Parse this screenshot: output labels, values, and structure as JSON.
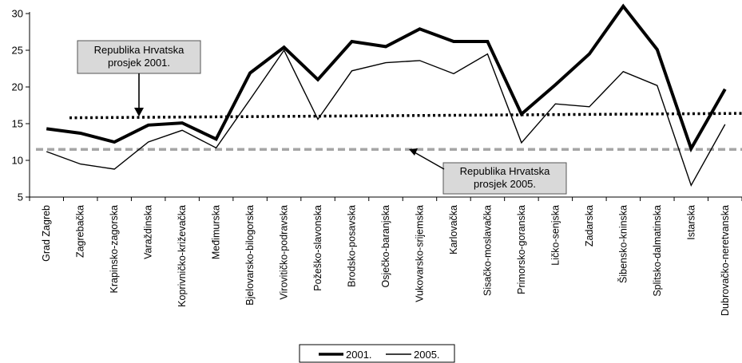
{
  "chart_data": {
    "type": "line",
    "categories": [
      "Grad Zagreb",
      "Zagrebačka",
      "Krapinsko-zagorska",
      "Varaždinska",
      "Koprivničko-križevačka",
      "Međimurska",
      "Bjelovarsko-bilogorska",
      "Virovitičko-podravska",
      "Požeško-slavonska",
      "Brodsko-posavska",
      "Osječko-baranjska",
      "Vukovarsko-srijemska",
      "Karlovačka",
      "Sisačko-moslavačka",
      "Primorsko-goranska",
      "Ličko-senjska",
      "Zadarska",
      "Šibensko-kninska",
      "Splitsko-dalmatinska",
      "Istarska",
      "Dubrovačko-neretvanska"
    ],
    "series": [
      {
        "name": "2001.",
        "color": "#000000",
        "style": "thick",
        "values": [
          14.3,
          13.7,
          12.5,
          14.8,
          15.1,
          12.9,
          21.9,
          25.4,
          21.0,
          26.2,
          25.5,
          27.9,
          26.2,
          26.2,
          16.3,
          20.3,
          24.5,
          31.0,
          25.1,
          11.6,
          19.7
        ]
      },
      {
        "name": "2005.",
        "color": "#000000",
        "style": "thin",
        "values": [
          11.2,
          9.5,
          8.8,
          12.5,
          14.1,
          11.7,
          18.3,
          25.0,
          15.6,
          22.2,
          23.3,
          23.6,
          21.8,
          24.5,
          12.4,
          17.7,
          17.3,
          22.1,
          20.2,
          6.6,
          14.9
        ]
      }
    ],
    "reference_lines": [
      {
        "name": "prosjek 2001.",
        "value": 15.8,
        "value_end": 16.4,
        "color": "#000000",
        "style": "dotted"
      },
      {
        "name": "prosjek 2005.",
        "value": 11.5,
        "color": "#a6a6a6",
        "style": "dashed"
      }
    ],
    "annotations": [
      {
        "lines": [
          "Republika Hrvatska",
          "prosjek 2001."
        ]
      },
      {
        "lines": [
          "Republika Hrvatska",
          "prosjek 2005."
        ]
      }
    ],
    "yticks": [
      5,
      10,
      15,
      20,
      25,
      30
    ],
    "ylim": [
      5,
      31.5
    ],
    "grid": false,
    "legend_position": "bottom-center"
  }
}
